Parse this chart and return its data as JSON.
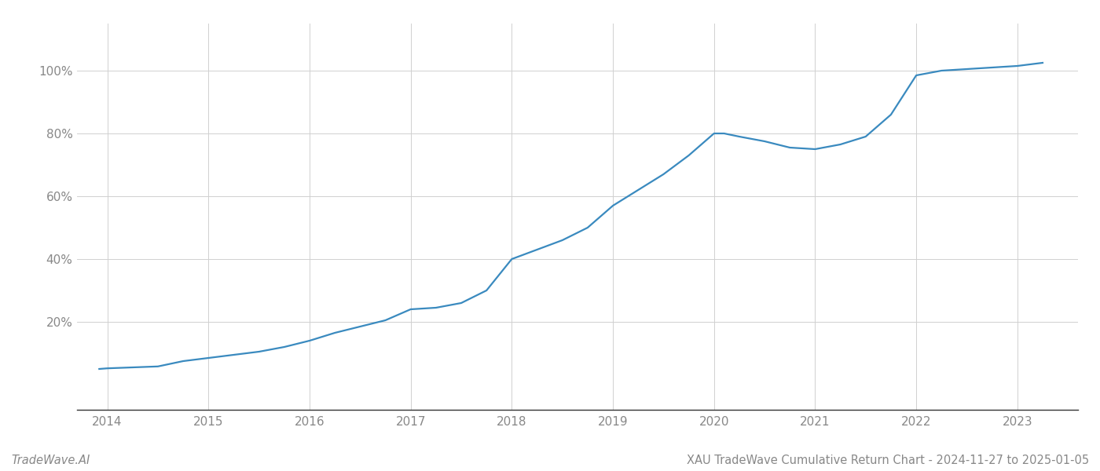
{
  "title": "XAU TradeWave Cumulative Return Chart - 2024-11-27 to 2025-01-05",
  "watermark": "TradeWave.AI",
  "line_color": "#3a8abf",
  "background_color": "#ffffff",
  "grid_color": "#d0d0d0",
  "x_values": [
    2013.92,
    2014.0,
    2014.25,
    2014.5,
    2014.75,
    2015.0,
    2015.25,
    2015.5,
    2015.75,
    2016.0,
    2016.25,
    2016.5,
    2016.75,
    2017.0,
    2017.25,
    2017.5,
    2017.75,
    2018.0,
    2018.25,
    2018.5,
    2018.75,
    2019.0,
    2019.25,
    2019.5,
    2019.75,
    2020.0,
    2020.1,
    2020.25,
    2020.5,
    2020.75,
    2021.0,
    2021.25,
    2021.5,
    2021.75,
    2022.0,
    2022.25,
    2022.5,
    2022.75,
    2023.0,
    2023.25
  ],
  "y_values": [
    5.0,
    5.2,
    5.5,
    5.8,
    7.5,
    8.5,
    9.5,
    10.5,
    12.0,
    14.0,
    16.5,
    18.5,
    20.5,
    24.0,
    24.5,
    26.0,
    30.0,
    40.0,
    43.0,
    46.0,
    50.0,
    57.0,
    62.0,
    67.0,
    73.0,
    80.0,
    80.0,
    79.0,
    77.5,
    75.5,
    75.0,
    76.5,
    79.0,
    86.0,
    98.5,
    100.0,
    100.5,
    101.0,
    101.5,
    102.5
  ],
  "xlim": [
    2013.7,
    2023.6
  ],
  "ylim": [
    -8,
    115
  ],
  "yticks": [
    20,
    40,
    60,
    80,
    100
  ],
  "ytick_labels": [
    "20%",
    "40%",
    "60%",
    "80%",
    "100%"
  ],
  "xticks": [
    2014,
    2015,
    2016,
    2017,
    2018,
    2019,
    2020,
    2021,
    2022,
    2023
  ],
  "tick_color": "#888888",
  "axis_color": "#333333",
  "title_fontsize": 10.5,
  "watermark_fontsize": 10.5,
  "axis_tick_fontsize": 11,
  "line_width": 1.6
}
